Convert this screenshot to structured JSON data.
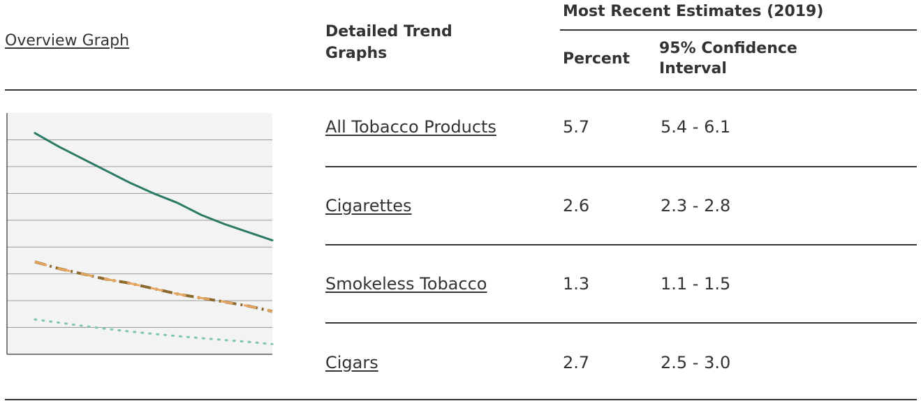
{
  "header": {
    "overview_link": "Overview Graph",
    "detailed_line1": "Detailed Trend",
    "detailed_line2": "Graphs",
    "most_recent": "Most Recent Estimates (2019)",
    "percent": "Percent",
    "ci_line1": "95% Confidence",
    "ci_line2": "Interval"
  },
  "rows": [
    {
      "label": "All Tobacco Products",
      "percent": "5.7",
      "ci": "5.4 - 6.1"
    },
    {
      "label": "Cigarettes",
      "percent": "2.6",
      "ci": "2.3 - 2.8"
    },
    {
      "label": "Smokeless Tobacco",
      "percent": "1.3",
      "ci": "1.1 - 1.5"
    },
    {
      "label": "Cigars",
      "percent": "2.7",
      "ci": "2.5 - 3.0"
    }
  ],
  "chart_data": {
    "type": "line",
    "title": "",
    "xlabel": "",
    "ylabel": "",
    "x": [
      0,
      1,
      2,
      3,
      4,
      5,
      6,
      7,
      8,
      9,
      10
    ],
    "ylim": [
      0,
      9
    ],
    "grid": true,
    "series": [
      {
        "values": [
          8.25,
          7.75,
          7.3,
          6.85,
          6.4,
          6.0,
          5.65,
          5.2,
          4.85,
          4.55,
          4.25
        ],
        "color": "#2a7a66",
        "style": "solid"
      },
      {
        "values": [
          3.45,
          3.2,
          3.0,
          2.8,
          2.65,
          2.45,
          2.25,
          2.1,
          1.95,
          1.8,
          1.6
        ],
        "color": "#8b6a2e",
        "style": "dashdot"
      },
      {
        "values": [
          3.45,
          3.2,
          3.0,
          2.8,
          2.65,
          2.45,
          2.25,
          2.1,
          1.95,
          1.8,
          1.6
        ],
        "color": "#e8a65e",
        "style": "dashed"
      },
      {
        "values": [
          1.3,
          1.18,
          1.06,
          0.95,
          0.85,
          0.76,
          0.68,
          0.6,
          0.53,
          0.46,
          0.38
        ],
        "color": "#7dc4b2",
        "style": "dotted"
      }
    ]
  },
  "colors": {
    "text": "#333333",
    "rule": "#333333",
    "grid": "#9a9a9a",
    "chart_bg": "#f3f3f3"
  }
}
